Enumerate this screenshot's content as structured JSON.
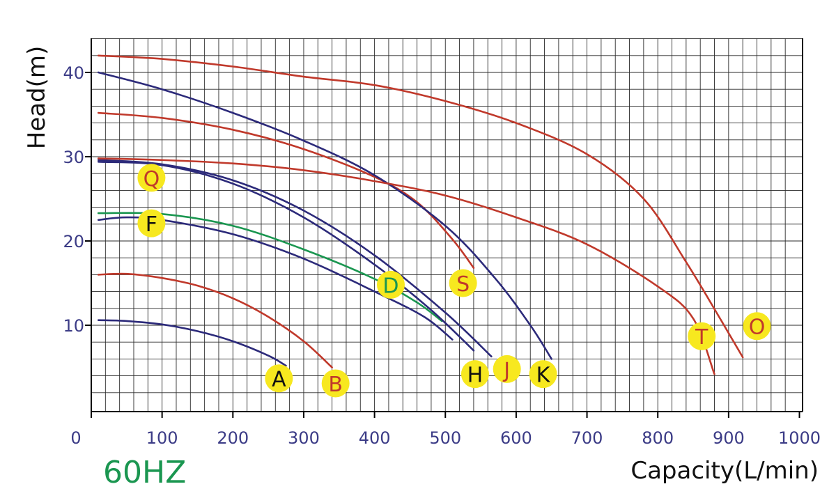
{
  "chart_data": {
    "type": "line",
    "frequency_label": "60HZ",
    "xlabel": "Capacity(L/min)",
    "ylabel": "Head(m)",
    "xlim": [
      0,
      1000
    ],
    "ylim": [
      0,
      44
    ],
    "x_ticks": [
      0,
      100,
      200,
      300,
      400,
      500,
      600,
      700,
      800,
      900,
      1000
    ],
    "y_ticks": [
      10,
      20,
      30,
      40
    ],
    "grid": true,
    "colors": {
      "grid": "#2a2a2a",
      "tick_text": "#3b3b86",
      "red": "#c0392b",
      "navy": "#2c2a7a",
      "green": "#1a9650",
      "marker": "#f7e81f"
    },
    "series": [
      {
        "label": "A",
        "color": "#2c2a7a",
        "label_color": "#111111",
        "points": [
          [
            10,
            10.6
          ],
          [
            50,
            10.5
          ],
          [
            100,
            10.1
          ],
          [
            150,
            9.3
          ],
          [
            200,
            8.1
          ],
          [
            250,
            6.4
          ],
          [
            275,
            5.2
          ]
        ]
      },
      {
        "label": "B",
        "color": "#c0392b",
        "label_color": "#c0392b",
        "points": [
          [
            10,
            16.0
          ],
          [
            50,
            16.1
          ],
          [
            100,
            15.6
          ],
          [
            150,
            14.7
          ],
          [
            200,
            13.2
          ],
          [
            250,
            11.0
          ],
          [
            300,
            8.1
          ],
          [
            340,
            5.0
          ]
        ]
      },
      {
        "label": "F",
        "color": "#2c2a7a",
        "label_color": "#111111",
        "points": [
          [
            10,
            22.5
          ],
          [
            50,
            22.8
          ],
          [
            100,
            22.5
          ],
          [
            200,
            20.8
          ],
          [
            300,
            17.9
          ],
          [
            400,
            14.0
          ],
          [
            470,
            11.0
          ],
          [
            510,
            8.3
          ]
        ]
      },
      {
        "label": "D",
        "color": "#1a9650",
        "label_color": "#1a9650",
        "points": [
          [
            10,
            23.3
          ],
          [
            100,
            23.2
          ],
          [
            200,
            21.8
          ],
          [
            300,
            19.0
          ],
          [
            400,
            15.5
          ],
          [
            460,
            12.7
          ],
          [
            495,
            10.5
          ]
        ]
      },
      {
        "label": "H",
        "color": "#2c2a7a",
        "label_color": "#111111",
        "points": [
          [
            10,
            29.4
          ],
          [
            100,
            29.0
          ],
          [
            200,
            26.8
          ],
          [
            300,
            22.8
          ],
          [
            400,
            17.2
          ],
          [
            480,
            11.8
          ],
          [
            540,
            7.0
          ]
        ]
      },
      {
        "label": "J",
        "color": "#2c2a7a",
        "label_color": "#c0392b",
        "points": [
          [
            10,
            29.6
          ],
          [
            100,
            29.1
          ],
          [
            200,
            27.2
          ],
          [
            300,
            23.6
          ],
          [
            400,
            18.3
          ],
          [
            500,
            11.5
          ],
          [
            565,
            6.3
          ]
        ]
      },
      {
        "label": "Q",
        "color": "#c0392b",
        "label_color": "#c0392b",
        "points": [
          [
            10,
            35.2
          ],
          [
            100,
            34.6
          ],
          [
            200,
            33.2
          ],
          [
            300,
            30.9
          ],
          [
            400,
            27.6
          ],
          [
            460,
            24.6
          ],
          [
            510,
            20.2
          ],
          [
            540,
            16.8
          ]
        ]
      },
      {
        "label": "K",
        "color": "#2c2a7a",
        "label_color": "#111111",
        "points": [
          [
            10,
            40.0
          ],
          [
            100,
            38.0
          ],
          [
            200,
            35.2
          ],
          [
            300,
            31.9
          ],
          [
            400,
            27.8
          ],
          [
            500,
            21.8
          ],
          [
            570,
            15.6
          ],
          [
            620,
            10.0
          ],
          [
            650,
            6.0
          ]
        ]
      },
      {
        "label": "S",
        "color": "#c0392b",
        "label_color": "#c0392b",
        "points": [
          [
            10,
            29.8
          ],
          [
            100,
            29.6
          ],
          [
            200,
            29.2
          ],
          [
            300,
            28.4
          ],
          [
            400,
            27.1
          ],
          [
            500,
            25.4
          ],
          [
            600,
            22.8
          ],
          [
            700,
            19.6
          ],
          [
            800,
            14.6
          ],
          [
            850,
            10.8
          ],
          [
            880,
            4.2
          ]
        ]
      },
      {
        "label": "T",
        "color": "#c0392b",
        "label_color": "#c0392b",
        "points": [
          [
            10,
            42.0
          ],
          [
            100,
            41.6
          ],
          [
            200,
            40.7
          ],
          [
            300,
            39.5
          ],
          [
            400,
            38.5
          ],
          [
            500,
            36.6
          ],
          [
            600,
            34.0
          ],
          [
            700,
            30.3
          ],
          [
            780,
            25.0
          ],
          [
            840,
            17.5
          ],
          [
            890,
            10.5
          ],
          [
            920,
            6.2
          ]
        ]
      }
    ],
    "markers": [
      {
        "text": "A",
        "x": 265,
        "y": 3.7,
        "text_color": "#111111"
      },
      {
        "text": "B",
        "x": 345,
        "y": 3.1,
        "text_color": "#c0392b"
      },
      {
        "text": "Q",
        "x": 85,
        "y": 27.5,
        "text_color": "#c0392b"
      },
      {
        "text": "F",
        "x": 85,
        "y": 22.1,
        "text_color": "#111111"
      },
      {
        "text": "D",
        "x": 423,
        "y": 14.8,
        "text_color": "#1a9650"
      },
      {
        "text": "S",
        "x": 525,
        "y": 15.0,
        "text_color": "#c0392b"
      },
      {
        "text": "H",
        "x": 542,
        "y": 4.2,
        "text_color": "#111111"
      },
      {
        "text": "J",
        "x": 587,
        "y": 4.8,
        "text_color": "#c0392b"
      },
      {
        "text": "K",
        "x": 638,
        "y": 4.2,
        "text_color": "#111111"
      },
      {
        "text": "T",
        "x": 862,
        "y": 8.7,
        "text_color": "#c0392b"
      },
      {
        "text": "O",
        "x": 940,
        "y": 9.9,
        "text_color": "#c0392b"
      }
    ]
  }
}
